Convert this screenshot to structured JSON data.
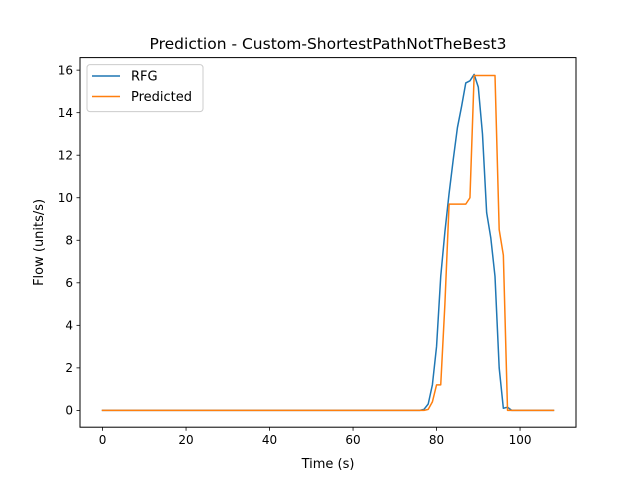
{
  "chart_data": {
    "type": "line",
    "title": "Prediction - Custom-ShortestPathNotTheBest3",
    "xlabel": "Time (s)",
    "ylabel": "Flow (units/s)",
    "xlim": [
      -5.4,
      113.4
    ],
    "ylim": [
      -0.79,
      16.59
    ],
    "xticks": [
      0,
      20,
      40,
      60,
      80,
      100
    ],
    "yticks": [
      0,
      2,
      4,
      6,
      8,
      10,
      12,
      14,
      16
    ],
    "grid": false,
    "legend_position": "top-left",
    "series": [
      {
        "name": "RFG",
        "color": "#1f77b4",
        "x": [
          0,
          10,
          20,
          30,
          40,
          50,
          60,
          70,
          76,
          77,
          78,
          79,
          80,
          81,
          82,
          83,
          84,
          85,
          86,
          87,
          88,
          89,
          90,
          91,
          92,
          93,
          94,
          95,
          96,
          97,
          98,
          99,
          100,
          108
        ],
        "y": [
          0,
          0,
          0,
          0,
          0,
          0,
          0,
          0,
          0,
          0.05,
          0.3,
          1.2,
          3.0,
          6.3,
          8.4,
          10.2,
          11.8,
          13.3,
          14.3,
          15.4,
          15.5,
          15.8,
          15.2,
          13.0,
          9.3,
          8.1,
          6.3,
          2.0,
          0.1,
          0.15,
          0.0,
          0.0,
          0.0,
          0.0
        ]
      },
      {
        "name": "Predicted",
        "color": "#ff7f0e",
        "x": [
          0,
          10,
          20,
          30,
          40,
          50,
          60,
          70,
          77,
          78,
          79,
          80,
          81,
          82,
          83,
          84,
          85,
          86,
          87,
          88,
          89,
          90,
          91,
          92,
          93,
          94,
          95,
          96,
          97,
          98,
          99,
          100,
          108
        ],
        "y": [
          0,
          0,
          0,
          0,
          0,
          0,
          0,
          0,
          0,
          0.05,
          0.4,
          1.2,
          1.2,
          5.0,
          9.7,
          9.7,
          9.7,
          9.7,
          9.7,
          10.0,
          15.75,
          15.75,
          15.75,
          15.75,
          15.75,
          15.75,
          8.5,
          7.3,
          0.0,
          0.0,
          0.0,
          0.0,
          0.0
        ]
      }
    ]
  }
}
